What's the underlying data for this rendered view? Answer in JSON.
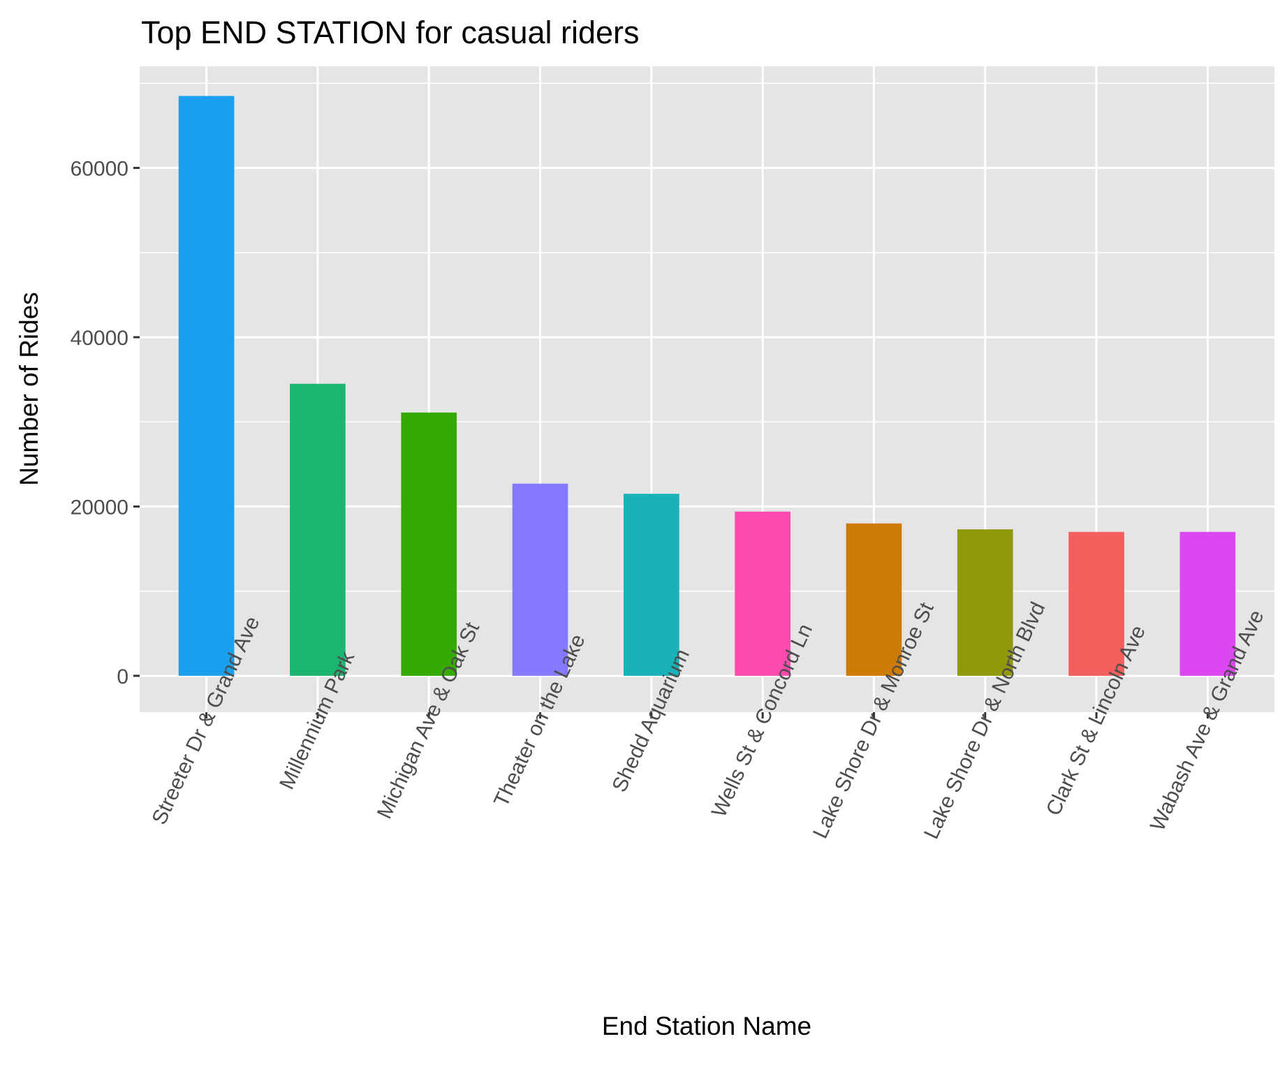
{
  "chart_data": {
    "type": "bar",
    "title": "Top END STATION for casual riders",
    "xlabel": "End Station Name",
    "ylabel": "Number of Rides",
    "ylim": [
      -4300,
      72000
    ],
    "yticks": [
      0,
      20000,
      40000,
      60000
    ],
    "grid": true,
    "categories": [
      "Streeter Dr & Grand Ave",
      "Millennium Park",
      "Michigan Ave & Oak St",
      "Theater on the Lake",
      "Shedd Aquarium",
      "Wells St & Concord Ln",
      "Lake Shore Dr & Monroe St",
      "Lake Shore Dr & North Blvd",
      "Clark St & Lincoln Ave",
      "Wabash Ave & Grand Ave"
    ],
    "values": [
      68500,
      34500,
      31100,
      22700,
      21500,
      19400,
      18000,
      17300,
      17000,
      17000
    ],
    "colors": [
      "#1AA0EF",
      "#1CB56F",
      "#35AA05",
      "#857AFE",
      "#18B2B8",
      "#FC4AAE",
      "#CE7C08",
      "#8F990B",
      "#F35F5D",
      "#DD47F2"
    ]
  }
}
